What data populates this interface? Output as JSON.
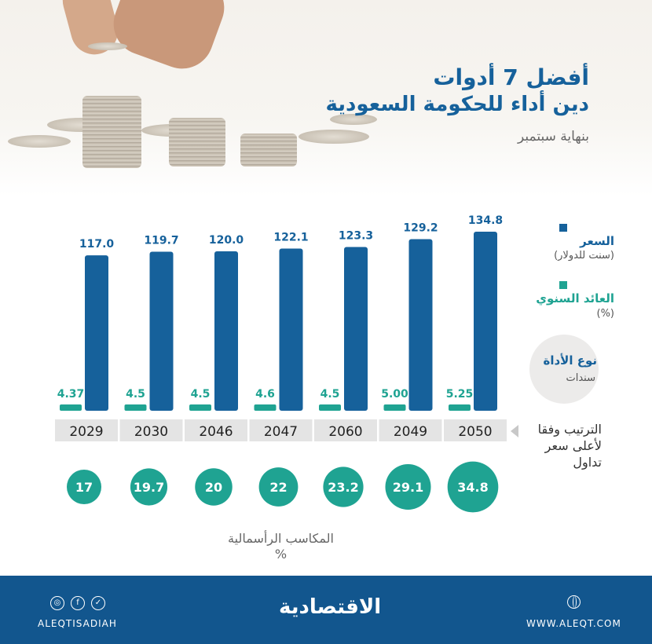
{
  "header": {
    "title_line1": "أفضل 7 أدوات",
    "title_line2": "دين أداء للحكومة السعودية",
    "subtitle": "بنهاية سبتمبر"
  },
  "legend": {
    "price": {
      "label": "السعر",
      "unit": "(سنت للدولار)"
    },
    "yield": {
      "label": "العائد السنوي",
      "unit": "(%)"
    },
    "instrument": {
      "label": "نوع الأداة",
      "value": "سندات"
    }
  },
  "ranking_label": "الترتيب وفقا لأعلى سعر تداول",
  "gains_label": "المكاسب الرأسمالية",
  "gains_unit": "%",
  "footer": {
    "brand": "الاقتصادية",
    "handle": "ALEQTISADIAH",
    "website": "WWW.ALEQT.COM"
  },
  "colors": {
    "price": "#16619b",
    "yield": "#1fa392",
    "gains": "#1fa392",
    "footer": "#12568e",
    "year_box": "#e4e4e4"
  },
  "icons": [
    "instagram-icon",
    "facebook-icon",
    "twitter-icon",
    "globe-icon"
  ],
  "chart_data": {
    "type": "bar",
    "categories": [
      "2029",
      "2030",
      "2046",
      "2047",
      "2060",
      "2049",
      "2050"
    ],
    "series": [
      {
        "name": "السعر",
        "values": [
          117.0,
          119.7,
          120.0,
          122.1,
          123.3,
          129.2,
          134.8
        ],
        "labels": [
          "117.0",
          "119.7",
          "120.0",
          "122.1",
          "123.3",
          "129.2",
          "134.8"
        ]
      },
      {
        "name": "العائد السنوي",
        "values": [
          4.37,
          4.5,
          4.5,
          4.6,
          4.5,
          5.0,
          5.25
        ],
        "labels": [
          "4.37",
          "4.5",
          "4.5",
          "4.6",
          "4.5",
          "5.00",
          "5.25"
        ]
      }
    ],
    "gains": {
      "values": [
        17,
        19.7,
        20,
        22,
        23.2,
        29.1,
        34.8
      ],
      "labels": [
        "17",
        "19.7",
        "20",
        "22",
        "23.2",
        "29.1",
        "34.8"
      ]
    }
  }
}
